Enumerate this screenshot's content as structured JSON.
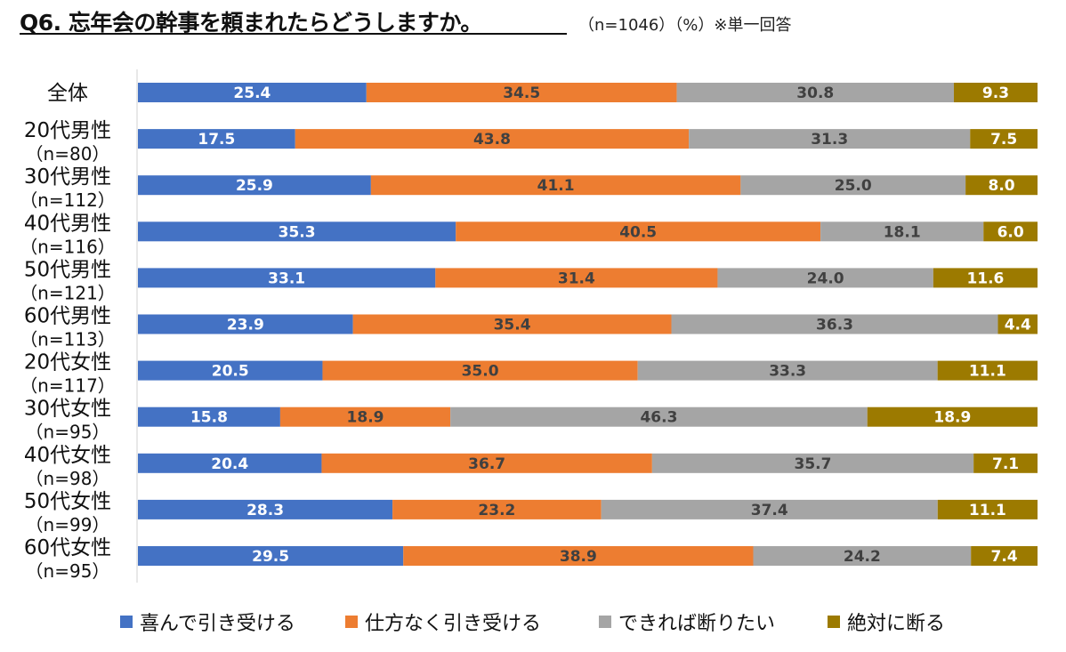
{
  "title": {
    "main": "Q6. 忘年会の幹事を頼まれたらどうしますか。",
    "sub": "（n=1046）（%）※単一回答"
  },
  "colors": {
    "blue": "#4472C4",
    "orange": "#ED7D31",
    "gray": "#A5A5A5",
    "gold": "#9C7A00"
  },
  "chart_data": {
    "type": "bar",
    "orientation": "horizontal-stacked-100",
    "categories": [
      {
        "label": "全体",
        "sub": ""
      },
      {
        "label": "20代男性",
        "sub": "（n=80）"
      },
      {
        "label": "30代男性",
        "sub": "（n=112）"
      },
      {
        "label": "40代男性",
        "sub": "（n=116）"
      },
      {
        "label": "50代男性",
        "sub": "（n=121）"
      },
      {
        "label": "60代男性",
        "sub": "（n=113）"
      },
      {
        "label": "20代女性",
        "sub": "（n=117）"
      },
      {
        "label": "30代女性",
        "sub": "（n=95）"
      },
      {
        "label": "40代女性",
        "sub": "（n=98）"
      },
      {
        "label": "50代女性",
        "sub": "（n=99）"
      },
      {
        "label": "60代女性",
        "sub": "（n=95）"
      }
    ],
    "series": [
      {
        "name": "喜んで引き受ける",
        "color": "#4472C4",
        "label_color": "#ffffff",
        "values": [
          25.4,
          17.5,
          25.9,
          35.3,
          33.1,
          23.9,
          20.5,
          15.8,
          20.4,
          28.3,
          29.5
        ]
      },
      {
        "name": "仕方なく引き受ける",
        "color": "#ED7D31",
        "label_color": "#404040",
        "values": [
          34.5,
          43.8,
          41.1,
          40.5,
          31.4,
          35.4,
          35.0,
          18.9,
          36.7,
          23.2,
          38.9
        ]
      },
      {
        "name": "できれば断りたい",
        "color": "#A5A5A5",
        "label_color": "#404040",
        "values": [
          30.8,
          31.3,
          25.0,
          18.1,
          24.0,
          36.3,
          33.3,
          46.3,
          35.7,
          37.4,
          24.2
        ]
      },
      {
        "name": "絶対に断る",
        "color": "#9C7A00",
        "label_color": "#ffffff",
        "values": [
          9.3,
          7.5,
          8.0,
          6.0,
          11.6,
          4.4,
          11.1,
          18.9,
          7.1,
          11.1,
          7.4
        ]
      }
    ],
    "xlim": [
      0,
      100
    ],
    "legend_position": "bottom",
    "grid": false
  }
}
